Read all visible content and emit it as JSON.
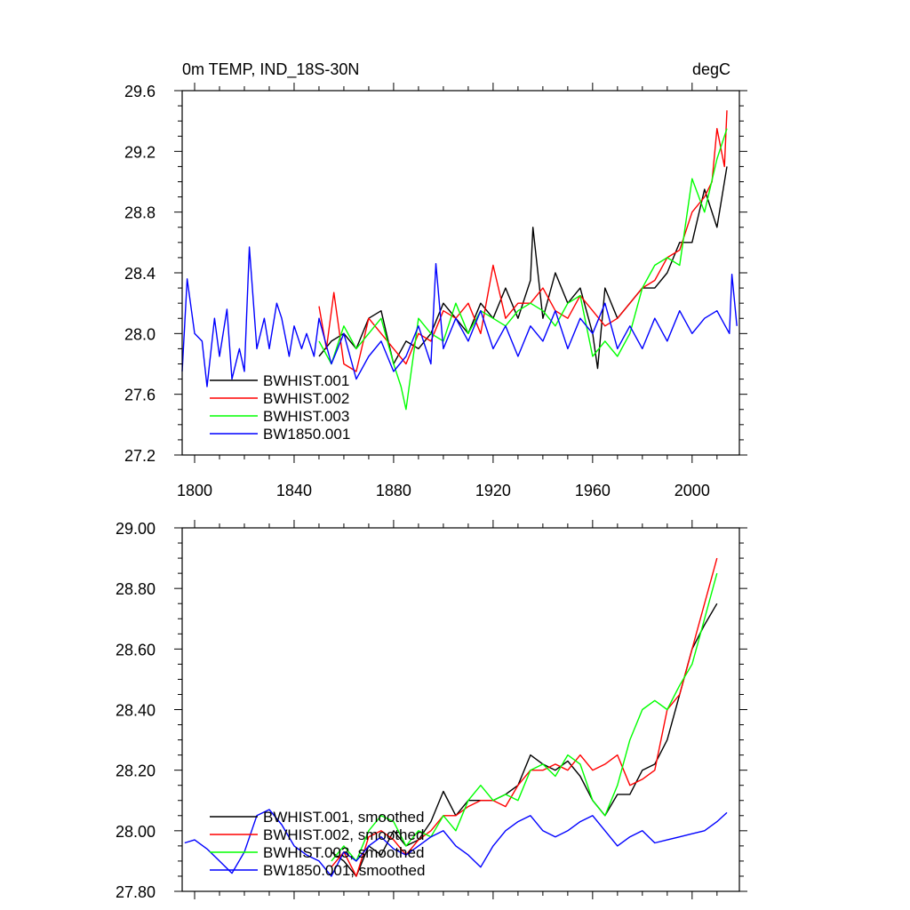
{
  "chart_data": [
    {
      "type": "line",
      "title": "0m TEMP, IND_18S-30N",
      "units": "degC",
      "xlabel": "",
      "ylabel": "",
      "xlim": [
        1795,
        2019
      ],
      "ylim": [
        27.2,
        29.6
      ],
      "xticks": [
        1800,
        1840,
        1880,
        1920,
        1960,
        2000
      ],
      "xtick_labels": [
        "1800",
        "1840",
        "1880",
        "1920",
        "1960",
        "2000"
      ],
      "yticks": [
        27.2,
        27.6,
        28.0,
        28.4,
        28.8,
        29.2,
        29.6
      ],
      "ytick_labels": [
        "27.2",
        "27.6",
        "28.0",
        "28.4",
        "28.8",
        "29.2",
        "29.6"
      ],
      "grid": false,
      "legend_position": "bottom-left",
      "series": [
        {
          "name": "BWHIST.001",
          "color": "#000000",
          "x": [
            1850,
            1855,
            1860,
            1865,
            1870,
            1875,
            1880,
            1885,
            1890,
            1895,
            1900,
            1905,
            1910,
            1915,
            1920,
            1925,
            1930,
            1935,
            1936,
            1940,
            1945,
            1950,
            1955,
            1960,
            1962,
            1965,
            1970,
            1975,
            1980,
            1985,
            1990,
            1995,
            2000,
            2005,
            2010,
            2014
          ],
          "y": [
            27.85,
            27.95,
            28.0,
            27.9,
            28.1,
            28.15,
            27.8,
            27.95,
            27.9,
            28.0,
            28.2,
            28.1,
            28.0,
            28.2,
            28.1,
            28.3,
            28.1,
            28.35,
            28.7,
            28.1,
            28.4,
            28.2,
            28.3,
            28.0,
            27.77,
            28.3,
            28.1,
            28.2,
            28.3,
            28.3,
            28.4,
            28.6,
            28.6,
            28.95,
            28.7,
            29.1
          ]
        },
        {
          "name": "BWHIST.002",
          "color": "#ff0000",
          "x": [
            1850,
            1853,
            1856,
            1860,
            1865,
            1870,
            1875,
            1880,
            1885,
            1890,
            1895,
            1900,
            1905,
            1910,
            1915,
            1920,
            1925,
            1930,
            1935,
            1940,
            1945,
            1950,
            1955,
            1960,
            1965,
            1970,
            1975,
            1980,
            1985,
            1990,
            1995,
            2000,
            2005,
            2008,
            2010,
            2013,
            2014
          ],
          "y": [
            28.18,
            27.9,
            28.27,
            27.8,
            27.75,
            28.1,
            28.0,
            27.9,
            27.8,
            28.0,
            27.95,
            28.15,
            28.1,
            28.2,
            28.0,
            28.45,
            28.1,
            28.2,
            28.2,
            28.3,
            28.15,
            28.1,
            28.25,
            28.15,
            28.05,
            28.1,
            28.2,
            28.3,
            28.35,
            28.5,
            28.55,
            28.8,
            28.9,
            29.0,
            29.35,
            29.1,
            29.47
          ]
        },
        {
          "name": "BWHIST.003",
          "color": "#00ff00",
          "x": [
            1850,
            1855,
            1860,
            1865,
            1870,
            1875,
            1880,
            1883,
            1885,
            1890,
            1895,
            1900,
            1905,
            1910,
            1915,
            1920,
            1925,
            1930,
            1935,
            1940,
            1945,
            1950,
            1955,
            1960,
            1965,
            1970,
            1975,
            1980,
            1985,
            1990,
            1995,
            2000,
            2005,
            2010,
            2014
          ],
          "y": [
            27.95,
            27.8,
            28.05,
            27.9,
            28.0,
            28.1,
            27.8,
            27.65,
            27.5,
            28.1,
            28.0,
            27.95,
            28.2,
            28.0,
            28.15,
            28.1,
            28.05,
            28.15,
            28.2,
            28.15,
            28.05,
            28.2,
            28.25,
            27.85,
            27.95,
            27.85,
            28.0,
            28.3,
            28.45,
            28.5,
            28.45,
            29.02,
            28.8,
            29.15,
            29.35
          ]
        },
        {
          "name": "BW1850.001",
          "color": "#0000ff",
          "x": [
            1795,
            1797,
            1800,
            1803,
            1805,
            1808,
            1810,
            1813,
            1815,
            1818,
            1820,
            1822,
            1825,
            1828,
            1830,
            1833,
            1835,
            1838,
            1840,
            1843,
            1845,
            1848,
            1850,
            1855,
            1860,
            1865,
            1870,
            1875,
            1880,
            1885,
            1890,
            1895,
            1897,
            1900,
            1905,
            1910,
            1915,
            1920,
            1925,
            1930,
            1935,
            1940,
            1945,
            1950,
            1955,
            1960,
            1965,
            1970,
            1975,
            1980,
            1985,
            1990,
            1995,
            2000,
            2005,
            2010,
            2015,
            2016,
            2018
          ],
          "y": [
            27.75,
            28.36,
            28.0,
            27.95,
            27.65,
            28.1,
            27.85,
            28.16,
            27.7,
            27.9,
            27.75,
            28.57,
            27.9,
            28.1,
            27.9,
            28.2,
            28.1,
            27.85,
            28.05,
            27.9,
            28.0,
            27.85,
            28.1,
            27.8,
            28.0,
            27.7,
            27.85,
            27.95,
            27.75,
            27.85,
            28.05,
            27.8,
            28.46,
            27.9,
            28.1,
            27.95,
            28.15,
            27.9,
            28.05,
            27.85,
            28.05,
            27.95,
            28.15,
            27.9,
            28.1,
            28.0,
            28.2,
            27.9,
            28.05,
            27.9,
            28.1,
            27.95,
            28.15,
            28.0,
            28.1,
            28.15,
            28.0,
            28.39,
            28.05
          ]
        }
      ]
    },
    {
      "type": "line",
      "title": "",
      "xlabel": "",
      "ylabel": "",
      "xlim": [
        1795,
        2019
      ],
      "ylim": [
        27.8,
        29.0
      ],
      "xticks": [
        1800,
        1840,
        1880,
        1920,
        1960,
        2000
      ],
      "yticks": [
        27.8,
        28.0,
        28.2,
        28.4,
        28.6,
        28.8,
        29.0
      ],
      "ytick_labels": [
        "27.80",
        "28.00",
        "28.20",
        "28.40",
        "28.60",
        "28.80",
        "29.00"
      ],
      "grid": false,
      "legend_position": "bottom-left",
      "series": [
        {
          "name": "BWHIST.001, smoothed",
          "color": "#000000",
          "x": [
            1855,
            1860,
            1865,
            1870,
            1875,
            1880,
            1885,
            1890,
            1895,
            1900,
            1905,
            1910,
            1915,
            1920,
            1925,
            1930,
            1935,
            1940,
            1945,
            1950,
            1955,
            1960,
            1965,
            1970,
            1975,
            1980,
            1985,
            1990,
            1995,
            2000,
            2005,
            2010
          ],
          "y": [
            27.93,
            27.9,
            27.85,
            27.95,
            27.92,
            28.0,
            27.95,
            27.97,
            28.03,
            28.13,
            28.05,
            28.1,
            28.1,
            28.1,
            28.12,
            28.15,
            28.25,
            28.22,
            28.2,
            28.23,
            28.18,
            28.1,
            28.05,
            28.12,
            28.12,
            28.2,
            28.22,
            28.3,
            28.45,
            28.6,
            28.68,
            28.75
          ]
        },
        {
          "name": "BWHIST.002, smoothed",
          "color": "#ff0000",
          "x": [
            1855,
            1860,
            1865,
            1870,
            1875,
            1880,
            1885,
            1890,
            1895,
            1900,
            1905,
            1910,
            1915,
            1920,
            1925,
            1930,
            1935,
            1940,
            1945,
            1950,
            1955,
            1960,
            1965,
            1970,
            1975,
            1980,
            1985,
            1990,
            1995,
            2000,
            2005,
            2010
          ],
          "y": [
            27.88,
            27.93,
            27.85,
            27.98,
            28.0,
            27.97,
            27.92,
            27.97,
            28.0,
            28.05,
            28.05,
            28.08,
            28.1,
            28.1,
            28.08,
            28.15,
            28.2,
            28.2,
            28.22,
            28.2,
            28.25,
            28.2,
            28.22,
            28.25,
            28.15,
            28.17,
            28.2,
            28.4,
            28.45,
            28.6,
            28.75,
            28.9
          ]
        },
        {
          "name": "BWHIST.003, smoothed",
          "color": "#00ff00",
          "x": [
            1855,
            1860,
            1865,
            1870,
            1875,
            1880,
            1885,
            1890,
            1895,
            1900,
            1905,
            1910,
            1915,
            1920,
            1925,
            1930,
            1935,
            1940,
            1945,
            1950,
            1955,
            1960,
            1965,
            1970,
            1975,
            1980,
            1985,
            1990,
            1995,
            2000,
            2005,
            2010
          ],
          "y": [
            27.9,
            27.95,
            27.9,
            28.0,
            28.05,
            28.03,
            27.95,
            28.0,
            27.98,
            28.05,
            28.0,
            28.1,
            28.15,
            28.1,
            28.12,
            28.1,
            28.2,
            28.22,
            28.18,
            28.25,
            28.22,
            28.1,
            28.05,
            28.15,
            28.3,
            28.4,
            28.43,
            28.4,
            28.48,
            28.55,
            28.7,
            28.85
          ]
        },
        {
          "name": "BW1850.001, smoothed",
          "color": "#0000ff",
          "x": [
            1796,
            1800,
            1805,
            1810,
            1815,
            1820,
            1825,
            1830,
            1835,
            1840,
            1845,
            1850,
            1855,
            1860,
            1865,
            1870,
            1875,
            1880,
            1885,
            1890,
            1895,
            1900,
            1905,
            1910,
            1915,
            1920,
            1925,
            1930,
            1935,
            1940,
            1945,
            1950,
            1955,
            1960,
            1965,
            1970,
            1975,
            1980,
            1985,
            1990,
            1995,
            2000,
            2005,
            2010,
            2014
          ],
          "y": [
            27.96,
            27.97,
            27.94,
            27.9,
            27.86,
            27.93,
            28.05,
            28.07,
            28.02,
            27.95,
            27.92,
            27.9,
            27.85,
            27.93,
            27.9,
            27.95,
            27.98,
            27.94,
            27.92,
            27.95,
            27.98,
            28.0,
            27.95,
            27.92,
            27.88,
            27.95,
            28.0,
            28.03,
            28.05,
            28.0,
            27.98,
            28.0,
            28.03,
            28.05,
            28.0,
            27.95,
            27.98,
            28.0,
            27.96,
            27.97,
            27.98,
            27.99,
            28.0,
            28.03,
            28.06
          ]
        }
      ]
    }
  ]
}
